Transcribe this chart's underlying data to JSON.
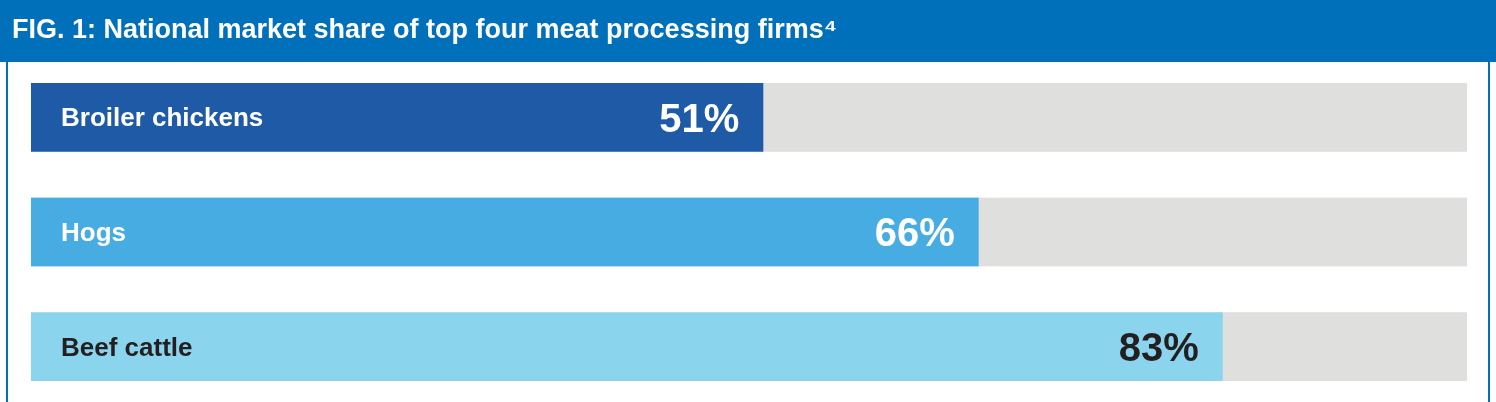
{
  "chart_data": {
    "type": "bar",
    "orientation": "horizontal",
    "title": "FIG. 1: National market share of top four meat processing firms⁴",
    "categories": [
      "Broiler chickens",
      "Hogs",
      "Beef cattle"
    ],
    "values": [
      51,
      66,
      83
    ],
    "colors": [
      "#1f5aa7",
      "#47ace1",
      "#8ad4ee"
    ],
    "value_labels": [
      "51%",
      "66%",
      "83%"
    ],
    "xlim": [
      0,
      100
    ]
  }
}
